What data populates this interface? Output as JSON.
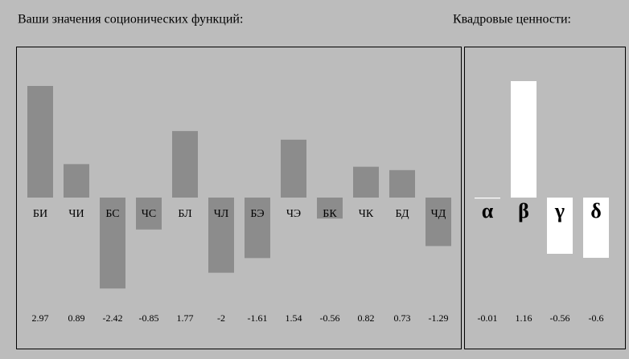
{
  "chart_data": [
    {
      "type": "bar",
      "title": "Ваши значения соционических функций:",
      "categories": [
        "БИ",
        "ЧИ",
        "БС",
        "ЧС",
        "БЛ",
        "ЧЛ",
        "БЭ",
        "ЧЭ",
        "БК",
        "ЧК",
        "БД",
        "ЧД"
      ],
      "values": [
        2.97,
        0.89,
        -2.42,
        -0.85,
        1.77,
        -2,
        -1.61,
        1.54,
        -0.56,
        0.82,
        0.73,
        -1.29
      ],
      "color": "#8c8c8c"
    },
    {
      "type": "bar",
      "title": "Квадровые ценности:",
      "categories": [
        "α",
        "β",
        "γ",
        "δ"
      ],
      "values": [
        -0.01,
        1.16,
        -0.56,
        -0.6
      ],
      "color": "#ffffff"
    }
  ]
}
